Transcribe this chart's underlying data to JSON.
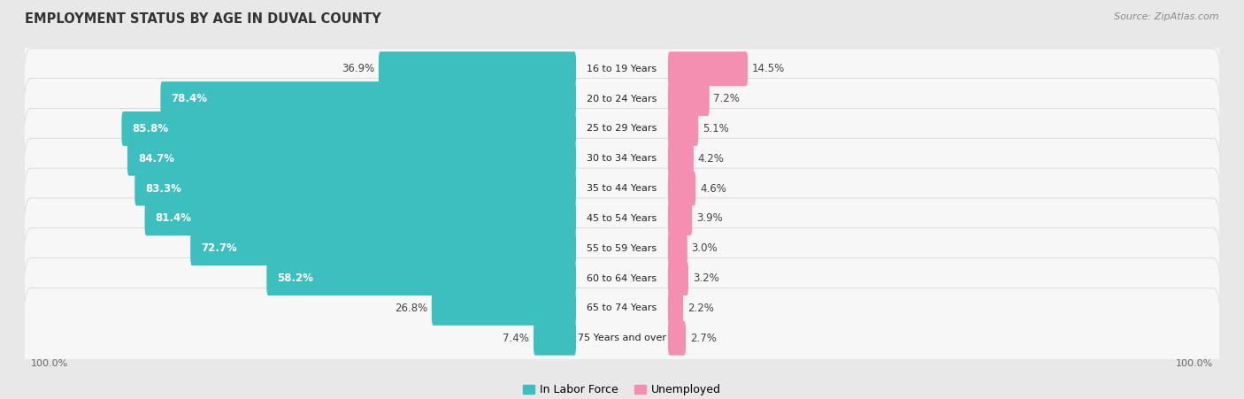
{
  "title": "EMPLOYMENT STATUS BY AGE IN DUVAL COUNTY",
  "source": "Source: ZipAtlas.com",
  "categories": [
    "16 to 19 Years",
    "20 to 24 Years",
    "25 to 29 Years",
    "30 to 34 Years",
    "35 to 44 Years",
    "45 to 54 Years",
    "55 to 59 Years",
    "60 to 64 Years",
    "65 to 74 Years",
    "75 Years and over"
  ],
  "labor_force": [
    36.9,
    78.4,
    85.8,
    84.7,
    83.3,
    81.4,
    72.7,
    58.2,
    26.8,
    7.4
  ],
  "unemployed": [
    14.5,
    7.2,
    5.1,
    4.2,
    4.6,
    3.9,
    3.0,
    3.2,
    2.2,
    2.7
  ],
  "labor_color": "#3dbfbf",
  "unemployed_color": "#f48fb1",
  "bg_color": "#e8e8e8",
  "row_bg_color": "#f7f7f7",
  "row_border_color": "#d0d0d0",
  "title_fontsize": 10.5,
  "label_fontsize": 8.5,
  "source_fontsize": 8,
  "legend_fontsize": 9,
  "axis_label_fontsize": 8
}
